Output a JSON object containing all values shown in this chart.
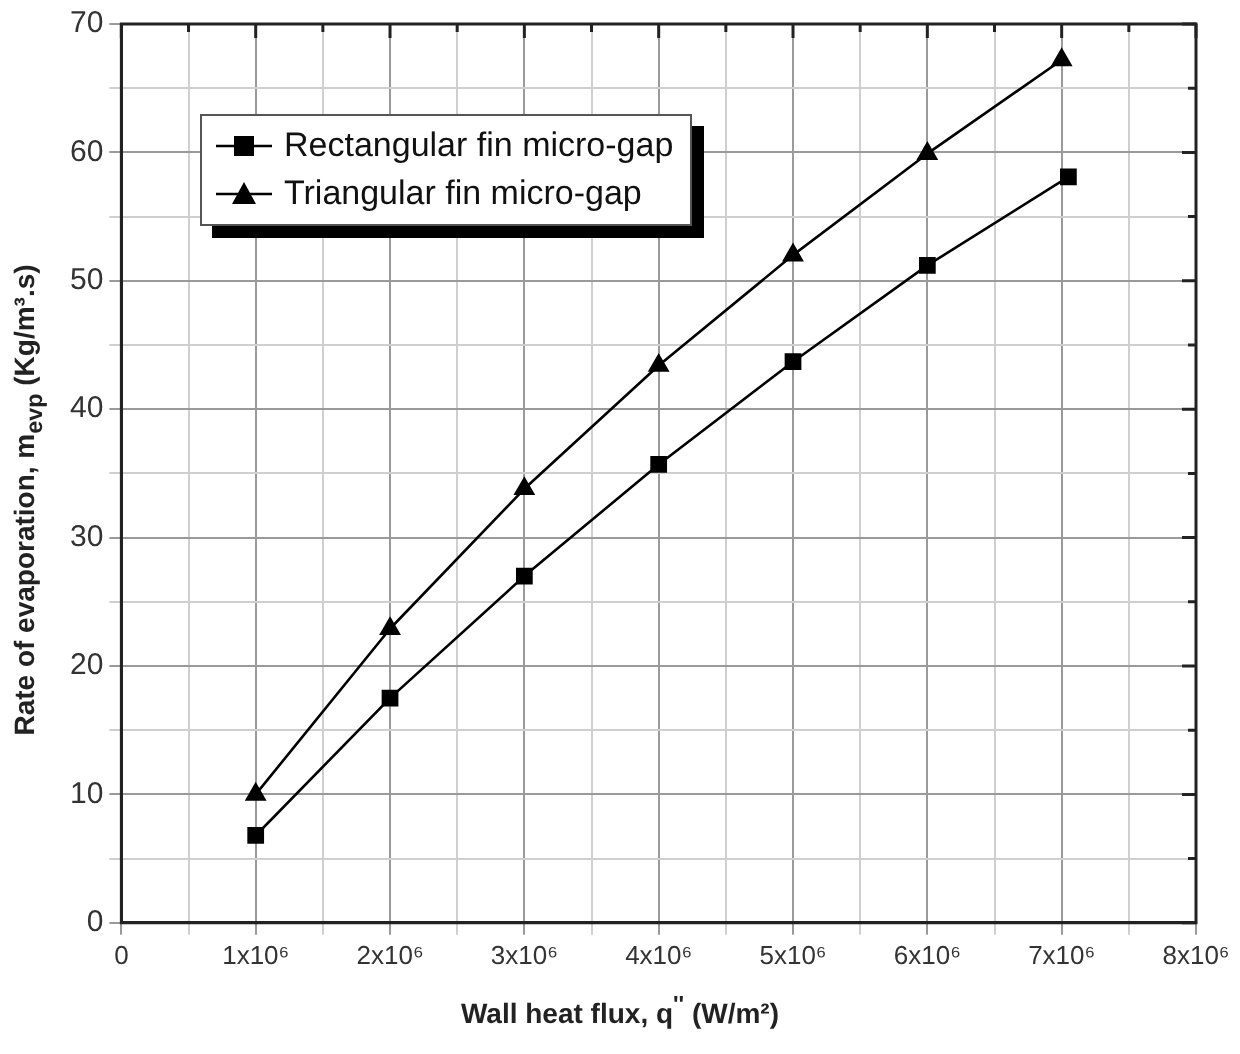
{
  "chart_data": {
    "type": "line",
    "xlabel": "Wall heat flux, q$^{''}$ (W/m²)",
    "ylabel": "Rate of evaporation, m$_{evp}$ (Kg/m³.s)",
    "xlim": [
      0,
      8000000
    ],
    "xticks": [
      {
        "value": 0,
        "label": "0"
      },
      {
        "value": 500000,
        "label": null
      },
      {
        "value": 1000000,
        "label": "1x10⁶"
      },
      {
        "value": 1500000,
        "label": null
      },
      {
        "value": 2000000,
        "label": "2x10⁶"
      },
      {
        "value": 2500000,
        "label": null
      },
      {
        "value": 3000000,
        "label": "3x10⁶"
      },
      {
        "value": 3500000,
        "label": null
      },
      {
        "value": 4000000,
        "label": "4x10⁶"
      },
      {
        "value": 4500000,
        "label": null
      },
      {
        "value": 5000000,
        "label": "5x10⁶"
      },
      {
        "value": 5500000,
        "label": null
      },
      {
        "value": 6000000,
        "label": "6x10⁶"
      },
      {
        "value": 6500000,
        "label": null
      },
      {
        "value": 7000000,
        "label": "7x10⁶"
      },
      {
        "value": 7500000,
        "label": null
      },
      {
        "value": 8000000,
        "label": "8x10⁶"
      }
    ],
    "ylim": [
      0,
      70
    ],
    "yticks": [
      0,
      {
        "value": 5,
        "label": null
      },
      10,
      {
        "value": 15,
        "label": null
      },
      20,
      {
        "value": 25,
        "label": null
      },
      30,
      {
        "value": 35,
        "label": null
      },
      40,
      {
        "value": 45,
        "label": null
      },
      50,
      {
        "value": 55,
        "label": null
      },
      60,
      {
        "value": 65,
        "label": null
      },
      70
    ],
    "grid": true,
    "legend": "top left",
    "line_style": "solid",
    "series": [
      {
        "name": "Rectangular fin micro-gap",
        "color": "#000000",
        "marker": "square",
        "x": [
          1000000,
          2000000,
          3000000,
          4000000,
          5000000,
          6000000,
          7050000
        ],
        "values": [
          6.8,
          17.5,
          27,
          35.7,
          43.7,
          51.2,
          58.1
        ]
      },
      {
        "name": "Triangular fin micro-gap",
        "color": "#000000",
        "marker": "triangle",
        "x": [
          1000000,
          2000000,
          3000000,
          4000000,
          5000000,
          6000000,
          7000000
        ],
        "values": [
          10,
          22.9,
          33.8,
          43.4,
          52,
          59.9,
          67.2
        ]
      }
    ]
  }
}
